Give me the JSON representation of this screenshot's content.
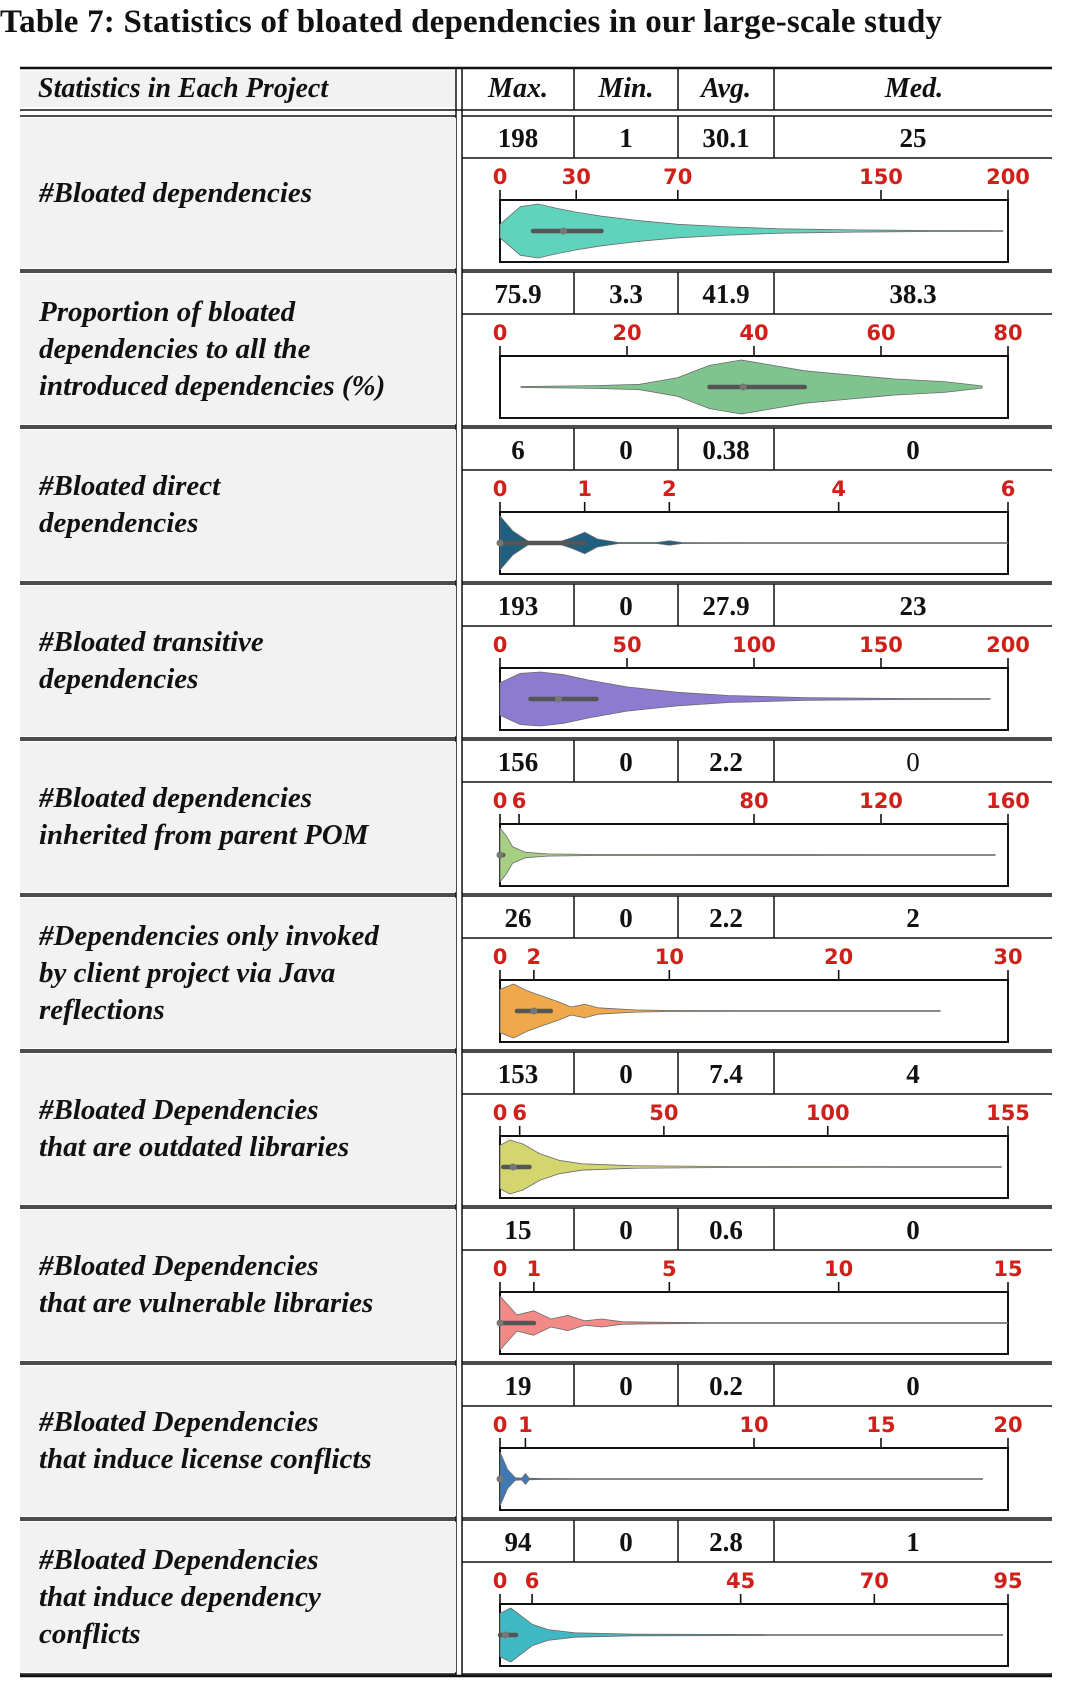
{
  "caption": "Table 7: Statistics of bloated dependencies in our large-scale study",
  "header": {
    "label": "Statistics in Each Project",
    "max": "Max.",
    "min": "Min.",
    "avg": "Avg.",
    "med": "Med."
  },
  "colors": {
    "tick_red": "#d0201a",
    "label_bg": "#f2f2f2"
  },
  "rows": [
    {
      "label": "#Bloated dependencies",
      "max": "198",
      "min": "1",
      "avg": "30.1",
      "med": "25",
      "med_bold": true
    },
    {
      "label": "Proportion of bloated\ndependencies to all the\nintroduced dependencies (%)",
      "max": "75.9",
      "min": "3.3",
      "avg": "41.9",
      "med": "38.3",
      "med_bold": true
    },
    {
      "label": "#Bloated direct\ndependencies",
      "max": "6",
      "min": "0",
      "avg": "0.38",
      "med": "0",
      "med_bold": true
    },
    {
      "label": "#Bloated transitive\ndependencies",
      "max": "193",
      "min": "0",
      "avg": "27.9",
      "med": "23",
      "med_bold": true
    },
    {
      "label": "#Bloated dependencies\ninherited from parent POM",
      "max": "156",
      "min": "0",
      "avg": "2.2",
      "med": "0",
      "med_bold": false
    },
    {
      "label": "#Dependencies only invoked\nby client project via Java\nreflections",
      "max": "26",
      "min": "0",
      "avg": "2.2",
      "med": "2",
      "med_bold": true
    },
    {
      "label": "#Bloated Dependencies\nthat are outdated libraries",
      "max": "153",
      "min": "0",
      "avg": "7.4",
      "med": "4",
      "med_bold": true
    },
    {
      "label": "#Bloated Dependencies\nthat are vulnerable libraries",
      "max": "15",
      "min": "0",
      "avg": "0.6",
      "med": "0",
      "med_bold": true
    },
    {
      "label": "#Bloated Dependencies\nthat induce license conflicts",
      "max": "19",
      "min": "0",
      "avg": "0.2",
      "med": "0",
      "med_bold": true
    },
    {
      "label": "#Bloated Dependencies\nthat induce dependency\nconflicts",
      "max": "94",
      "min": "0",
      "avg": "2.8",
      "med": "1",
      "med_bold": true
    }
  ],
  "chart_data": [
    {
      "type": "violin",
      "color": "#5fd3bc",
      "xlim": [
        0,
        200
      ],
      "ticks": [
        0,
        30,
        70,
        150,
        200
      ],
      "median": 25,
      "q1": 13,
      "q3": 40,
      "max": 198,
      "density": [
        [
          0,
          0.25
        ],
        [
          8,
          0.9
        ],
        [
          15,
          1
        ],
        [
          22,
          0.85
        ],
        [
          30,
          0.7
        ],
        [
          40,
          0.55
        ],
        [
          55,
          0.38
        ],
        [
          70,
          0.25
        ],
        [
          90,
          0.15
        ],
        [
          110,
          0.08
        ],
        [
          140,
          0.04
        ],
        [
          170,
          0.02
        ],
        [
          198,
          0.01
        ]
      ]
    },
    {
      "type": "violin",
      "color": "#7fc48f",
      "xlim": [
        0,
        80
      ],
      "ticks": [
        0,
        20,
        40,
        60,
        80
      ],
      "median": 38.3,
      "q1": 33,
      "q3": 48,
      "max": 75.9,
      "density": [
        [
          3.3,
          0.02
        ],
        [
          15,
          0.05
        ],
        [
          22,
          0.1
        ],
        [
          28,
          0.35
        ],
        [
          33,
          0.8
        ],
        [
          38,
          1
        ],
        [
          43,
          0.8
        ],
        [
          48,
          0.6
        ],
        [
          55,
          0.45
        ],
        [
          62,
          0.3
        ],
        [
          70,
          0.2
        ],
        [
          75.9,
          0.04
        ]
      ]
    },
    {
      "type": "violin",
      "color": "#1f5f80",
      "xlim": [
        0,
        6
      ],
      "ticks": [
        0,
        1,
        2,
        4,
        6
      ],
      "median": 0,
      "q1": 0,
      "q3": 1,
      "max": 6,
      "density": [
        [
          0,
          1
        ],
        [
          0.15,
          0.45
        ],
        [
          0.35,
          0.03
        ],
        [
          0.7,
          0.04
        ],
        [
          0.85,
          0.2
        ],
        [
          1,
          0.4
        ],
        [
          1.15,
          0.15
        ],
        [
          1.4,
          0.02
        ],
        [
          1.85,
          0.02
        ],
        [
          2,
          0.08
        ],
        [
          2.15,
          0.02
        ],
        [
          3,
          0.01
        ],
        [
          6,
          0.01
        ]
      ]
    },
    {
      "type": "violin",
      "color": "#8c7bd0",
      "xlim": [
        0,
        200
      ],
      "ticks": [
        0,
        50,
        100,
        150,
        200
      ],
      "median": 23,
      "q1": 12,
      "q3": 38,
      "max": 193,
      "density": [
        [
          0,
          0.6
        ],
        [
          8,
          0.95
        ],
        [
          16,
          1
        ],
        [
          25,
          0.9
        ],
        [
          35,
          0.7
        ],
        [
          50,
          0.45
        ],
        [
          70,
          0.25
        ],
        [
          90,
          0.13
        ],
        [
          120,
          0.05
        ],
        [
          160,
          0.02
        ],
        [
          193,
          0.01
        ]
      ]
    },
    {
      "type": "violin",
      "color": "#a7cf83",
      "xlim": [
        0,
        160
      ],
      "ticks": [
        0,
        6,
        80,
        120,
        160
      ],
      "median": 0,
      "q1": 0,
      "q3": 1,
      "max": 156,
      "density": [
        [
          0,
          1
        ],
        [
          2,
          0.7
        ],
        [
          4,
          0.3
        ],
        [
          8,
          0.1
        ],
        [
          15,
          0.04
        ],
        [
          30,
          0.02
        ],
        [
          156,
          0.01
        ]
      ]
    },
    {
      "type": "violin",
      "color": "#efa94a",
      "xlim": [
        0,
        30
      ],
      "ticks": [
        0,
        2,
        10,
        20,
        30
      ],
      "median": 2,
      "q1": 1,
      "q3": 3,
      "max": 26,
      "density": [
        [
          0,
          0.8
        ],
        [
          0.8,
          1
        ],
        [
          1.6,
          0.75
        ],
        [
          2.5,
          0.55
        ],
        [
          3.4,
          0.35
        ],
        [
          4.2,
          0.15
        ],
        [
          5,
          0.25
        ],
        [
          5.8,
          0.12
        ],
        [
          6.8,
          0.08
        ],
        [
          8,
          0.04
        ],
        [
          10,
          0.02
        ],
        [
          14,
          0.01
        ],
        [
          26,
          0.01
        ]
      ]
    },
    {
      "type": "violin",
      "color": "#d3d66f",
      "xlim": [
        0,
        155
      ],
      "ticks": [
        0,
        6,
        50,
        100,
        155
      ],
      "median": 4,
      "q1": 1,
      "q3": 9,
      "max": 153,
      "density": [
        [
          0,
          0.8
        ],
        [
          3,
          1
        ],
        [
          7,
          0.85
        ],
        [
          12,
          0.5
        ],
        [
          18,
          0.25
        ],
        [
          25,
          0.12
        ],
        [
          40,
          0.05
        ],
        [
          70,
          0.02
        ],
        [
          153,
          0.01
        ]
      ]
    },
    {
      "type": "violin",
      "color": "#f28b87",
      "xlim": [
        0,
        15
      ],
      "ticks": [
        0,
        1,
        5,
        10,
        15
      ],
      "median": 0,
      "q1": 0,
      "q3": 1,
      "max": 15,
      "density": [
        [
          0,
          1
        ],
        [
          0.5,
          0.3
        ],
        [
          1,
          0.45
        ],
        [
          1.5,
          0.15
        ],
        [
          2,
          0.28
        ],
        [
          2.5,
          0.08
        ],
        [
          3,
          0.15
        ],
        [
          3.6,
          0.05
        ],
        [
          4.5,
          0.03
        ],
        [
          6,
          0.01
        ],
        [
          15,
          0.01
        ]
      ]
    },
    {
      "type": "violin",
      "color": "#3f78b2",
      "xlim": [
        0,
        20
      ],
      "ticks": [
        0,
        1,
        10,
        15,
        20
      ],
      "median": 0,
      "q1": 0,
      "q3": 0,
      "max": 19,
      "density": [
        [
          0,
          1
        ],
        [
          0.3,
          0.35
        ],
        [
          0.6,
          0.05
        ],
        [
          0.85,
          0.03
        ],
        [
          1,
          0.2
        ],
        [
          1.15,
          0.03
        ],
        [
          1.6,
          0.02
        ],
        [
          3,
          0.01
        ],
        [
          19,
          0.01
        ]
      ]
    },
    {
      "type": "violin",
      "color": "#3fb8c3",
      "xlim": [
        0,
        95
      ],
      "ticks": [
        0,
        6,
        45,
        70,
        95
      ],
      "median": 1,
      "q1": 0,
      "q3": 3,
      "max": 94,
      "density": [
        [
          0,
          0.8
        ],
        [
          2,
          1
        ],
        [
          4,
          0.7
        ],
        [
          6,
          0.4
        ],
        [
          9,
          0.2
        ],
        [
          14,
          0.08
        ],
        [
          25,
          0.03
        ],
        [
          50,
          0.015
        ],
        [
          94,
          0.01
        ]
      ]
    }
  ]
}
